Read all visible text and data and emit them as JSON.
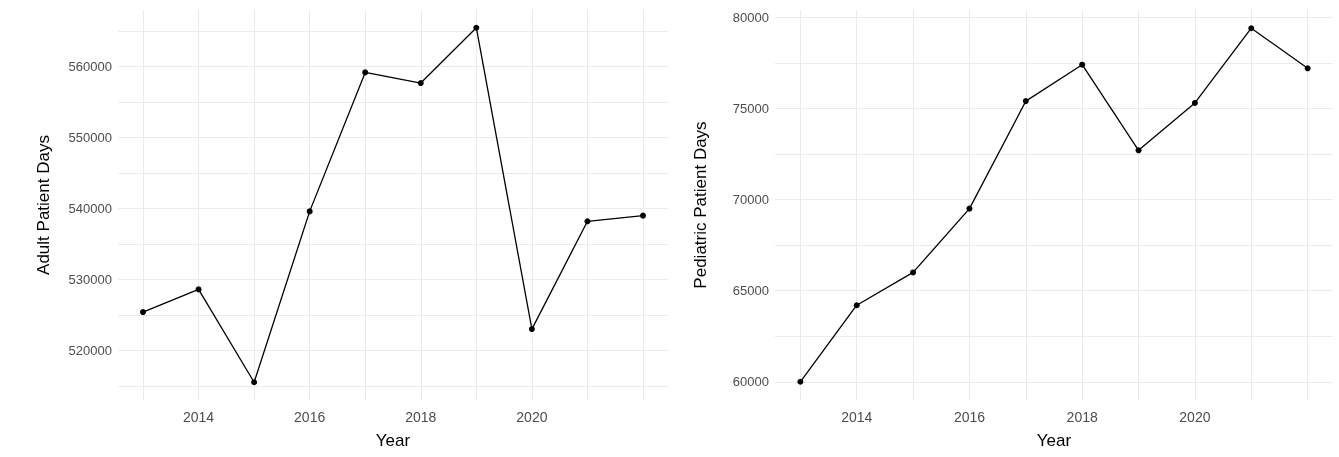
{
  "chart_data": [
    {
      "type": "line",
      "xlabel": "Year",
      "ylabel": "Adult Patient Days",
      "x": [
        2013,
        2014,
        2015,
        2016,
        2017,
        2018,
        2019,
        2020,
        2021,
        2022
      ],
      "series": [
        {
          "color": "#000000",
          "values": [
            525400,
            528600,
            515500,
            539600,
            559200,
            557700,
            565500,
            523000,
            538200,
            539000
          ]
        }
      ],
      "xlim": [
        2012.55,
        2022.45
      ],
      "xticks": [
        {
          "value": 2013,
          "label": null
        },
        2014,
        {
          "value": 2015,
          "label": null
        },
        2016,
        {
          "value": 2017,
          "label": null
        },
        2018,
        {
          "value": 2019,
          "label": null
        },
        2020,
        {
          "value": 2021,
          "label": null
        },
        {
          "value": 2022,
          "label": null
        }
      ],
      "ylim": [
        513000,
        568000
      ],
      "yticks": [
        {
          "value": 515000,
          "label": null
        },
        520000,
        {
          "value": 525000,
          "label": null
        },
        530000,
        {
          "value": 535000,
          "label": null
        },
        540000,
        {
          "value": 545000,
          "label": null
        },
        550000,
        {
          "value": 555000,
          "label": null
        },
        560000,
        {
          "value": 565000,
          "label": null
        }
      ],
      "grid": true,
      "marker": "circle",
      "line_style": "solid"
    },
    {
      "type": "line",
      "xlabel": "Year",
      "ylabel": "Pediatric Patient Days",
      "x": [
        2013,
        2014,
        2015,
        2016,
        2017,
        2018,
        2019,
        2020,
        2021,
        2022
      ],
      "series": [
        {
          "color": "#000000",
          "values": [
            60000,
            64200,
            66000,
            69500,
            75400,
            77400,
            72700,
            75300,
            79400,
            77200
          ]
        }
      ],
      "xlim": [
        2012.55,
        2022.45
      ],
      "xticks": [
        {
          "value": 2013,
          "label": null
        },
        2014,
        {
          "value": 2015,
          "label": null
        },
        2016,
        {
          "value": 2017,
          "label": null
        },
        2018,
        {
          "value": 2019,
          "label": null
        },
        2020,
        {
          "value": 2021,
          "label": null
        },
        {
          "value": 2022,
          "label": null
        }
      ],
      "ylim": [
        59000,
        80400
      ],
      "yticks": [
        60000,
        {
          "value": 62500,
          "label": null
        },
        65000,
        {
          "value": 67500,
          "label": null
        },
        70000,
        {
          "value": 72500,
          "label": null
        },
        75000,
        {
          "value": 77500,
          "label": null
        },
        80000
      ],
      "grid": true,
      "marker": "circle",
      "line_style": "solid"
    }
  ]
}
